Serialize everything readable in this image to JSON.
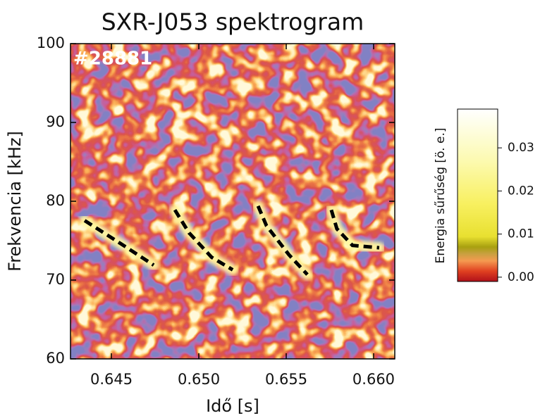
{
  "chart_data": {
    "type": "heatmap",
    "title": "SXR-J053 spektrogram",
    "annotation": "#28881",
    "xlabel": "Idő [s]",
    "ylabel": "Frekvencia [kHz]",
    "xlim": [
      0.64266,
      0.66121
    ],
    "ylim": [
      60,
      100
    ],
    "xticks": [
      0.645,
      {
        "value": 0.65,
        "label": "0.650"
      },
      0.655,
      {
        "value": 0.66,
        "label": "0.660"
      }
    ],
    "yticks": [
      60,
      70,
      80,
      90,
      100
    ],
    "curve_color": "#000000",
    "curves": [
      {
        "x": [
          0.64347,
          0.64548,
          0.64742
        ],
        "y": [
          77.55,
          74.7,
          71.9
        ]
      },
      {
        "x": [
          0.64863,
          0.64944,
          0.65073,
          0.65194
        ],
        "y": [
          78.9,
          76.0,
          72.9,
          71.3
        ]
      },
      {
        "x": [
          0.65339,
          0.65387,
          0.65516,
          0.65621
        ],
        "y": [
          79.4,
          76.9,
          73.2,
          70.7
        ]
      },
      {
        "x": [
          0.65758,
          0.6579,
          0.65879,
          0.66032
        ],
        "y": [
          78.9,
          76.5,
          74.4,
          74.1
        ]
      }
    ],
    "colorbar": {
      "label": "Energia sűrűség [ö. e.]",
      "lim": [
        -0.001,
        0.039
      ],
      "ticks": [
        {
          "value": 0,
          "label": "0.00"
        },
        {
          "value": 0.01,
          "label": "0.01"
        },
        {
          "value": 0.02,
          "label": "0.02"
        },
        {
          "value": 0.03,
          "label": "0.03"
        }
      ]
    }
  }
}
